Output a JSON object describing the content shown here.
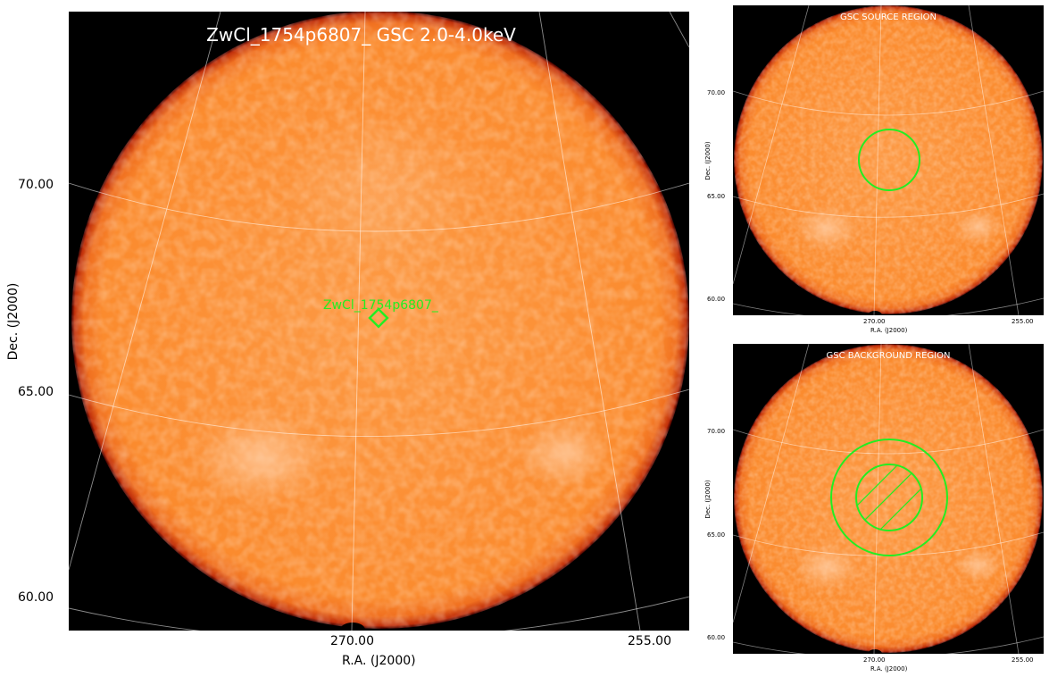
{
  "main": {
    "title": "ZwCl_1754p6807_ GSC 2.0-4.0keV",
    "source_label": "ZwCl_1754p6807_",
    "y_ticks": [
      "70.00",
      "65.00",
      "60.00"
    ],
    "x_ticks": [
      "270.00",
      "255.00"
    ],
    "xlabel": "R.A. (J2000)",
    "ylabel": "Dec. (J2000)"
  },
  "source_region": {
    "title": "GSC SOURCE REGION",
    "y_ticks": [
      "70.00",
      "65.00",
      "60.00"
    ],
    "x_ticks": [
      "270.00",
      "255.00"
    ],
    "xlabel": "R.A. (J2000)",
    "ylabel": "Dec. (J2000)"
  },
  "background_region": {
    "title": "GSC BACKGROUND REGION",
    "y_ticks": [
      "70.00",
      "65.00",
      "60.00"
    ],
    "x_ticks": [
      "270.00",
      "255.00"
    ],
    "xlabel": "R.A. (J2000)",
    "ylabel": "Dec. (J2000)"
  },
  "colors": {
    "disk": "#fb8b2e",
    "disk_edge": "#d83a10",
    "background": "#000000",
    "grid": "#ffffff",
    "region": "#22ee22"
  },
  "icons": [
    "field-of-view-disk",
    "diamond-marker",
    "circle-region",
    "annulus-region"
  ]
}
